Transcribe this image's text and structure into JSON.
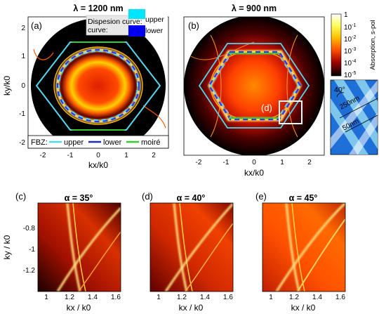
{
  "chart_data": [
    {
      "type": "heatmap",
      "panel": "(a)",
      "title": "λ = 1200 nm",
      "xlabel": "kx/k0",
      "ylabel": "ky/k0",
      "xticks": [
        "-2",
        "-1",
        "0",
        "1",
        "2"
      ],
      "yticks": [
        "2",
        "1",
        "0",
        "-1",
        "-2"
      ],
      "xlim": [
        -2.4,
        2.4
      ],
      "ylim": [
        -2.3,
        2.3
      ],
      "dispersion_legend": {
        "title": "Dispesion curve:",
        "entries": [
          {
            "label": "upper",
            "color": "#00e5ff"
          },
          {
            "label": "lower",
            "color": "#0000ee"
          }
        ]
      },
      "fbz_legend": {
        "title": "FBZ:",
        "entries": [
          {
            "label": "upper",
            "color": "#4dd8f0"
          },
          {
            "label": "lower",
            "color": "#1a2fb5"
          },
          {
            "label": "moiré",
            "color": "#33cc33"
          }
        ]
      }
    },
    {
      "type": "heatmap",
      "panel": "(b)",
      "title": "λ = 900 nm",
      "xlabel": "kx/k0",
      "xticks": [
        "-2",
        "-1",
        "0",
        "1",
        "2"
      ],
      "xlim": [
        -2.4,
        2.4
      ],
      "ylim": [
        -2.3,
        2.3
      ],
      "inset_box_label": "(d)",
      "colorbar": {
        "label": "Absorption, s-pol",
        "scale": "log",
        "ticks": [
          "1",
          "10-1",
          "10-2",
          "10-3",
          "10-4",
          "10-5"
        ],
        "range": [
          1e-05,
          1
        ]
      }
    },
    {
      "type": "diagram",
      "panel": "structure-inset",
      "angle_label": "40°",
      "period_label": "250nm",
      "width_label": "50nm"
    },
    {
      "type": "heatmap",
      "panel": "(c)",
      "title": "α = 35°",
      "xlabel": "kx / k0",
      "ylabel": "ky / k0",
      "xticks": [
        "1",
        "1.2",
        "1.4",
        "1.6"
      ],
      "yticks": [
        "-0.8",
        "-1",
        "-1.2"
      ],
      "xlim": [
        0.92,
        1.65
      ],
      "ylim": [
        -1.35,
        -0.68
      ]
    },
    {
      "type": "heatmap",
      "panel": "(d)",
      "title": "α = 40°",
      "xlabel": "kx / k0",
      "xticks": [
        "1",
        "1.2",
        "1.4",
        "1.6"
      ],
      "xlim": [
        0.92,
        1.65
      ],
      "ylim": [
        -1.35,
        -0.68
      ]
    },
    {
      "type": "heatmap",
      "panel": "(e)",
      "title": "α = 45°",
      "xlabel": "kx / k0",
      "xticks": [
        "1",
        "1.2",
        "1.4",
        "1.6"
      ],
      "xlim": [
        0.92,
        1.65
      ],
      "ylim": [
        -1.35,
        -0.68
      ]
    }
  ]
}
